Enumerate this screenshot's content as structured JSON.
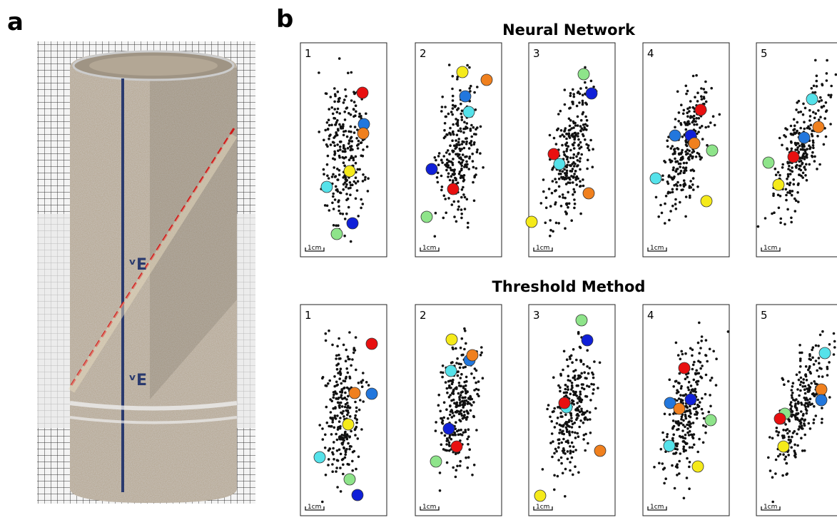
{
  "panel_labels": {
    "a": "a",
    "b": "b"
  },
  "sections": [
    {
      "title": "Neural Network",
      "panels": [
        "1",
        "2",
        "3",
        "4",
        "5"
      ],
      "scale_label": "1cm"
    },
    {
      "title": "Threshold Method",
      "panels": [
        "1",
        "2",
        "3",
        "4",
        "5"
      ],
      "scale_label": "1cm"
    }
  ]
}
